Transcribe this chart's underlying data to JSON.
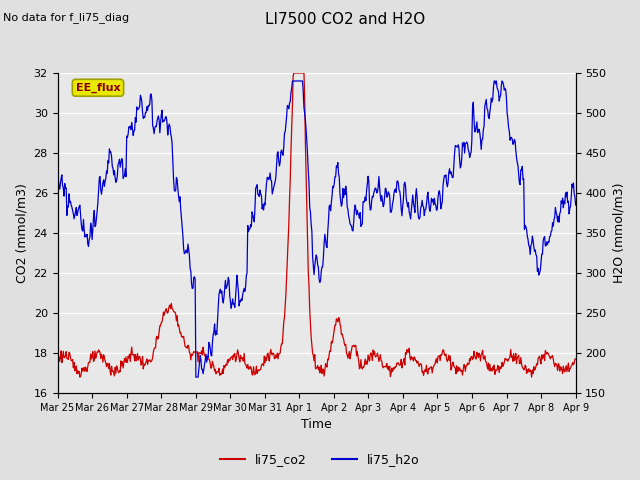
{
  "title": "LI7500 CO2 and H2O",
  "top_left_text": "No data for f_li75_diag",
  "annotation_box": "EE_flux",
  "xlabel": "Time",
  "ylabel_left": "CO2 (mmol/m3)",
  "ylabel_right": "H2O (mmol/m3)",
  "ylim_left": [
    16,
    32
  ],
  "ylim_right": [
    150,
    550
  ],
  "yticks_left": [
    16,
    18,
    20,
    22,
    24,
    26,
    28,
    30,
    32
  ],
  "yticks_right": [
    150,
    200,
    250,
    300,
    350,
    400,
    450,
    500,
    550
  ],
  "xtick_labels": [
    "Mar 25",
    "Mar 26",
    "Mar 27",
    "Mar 28",
    "Mar 29",
    "Mar 30",
    "Mar 31",
    "Apr 1",
    "Apr 2",
    "Apr 3",
    "Apr 4",
    "Apr 5",
    "Apr 6",
    "Apr 7",
    "Apr 8",
    "Apr 9"
  ],
  "co2_color": "#cc0000",
  "h2o_color": "#0000cc",
  "background_color": "#e0e0e0",
  "plot_bg_color": "#e8e8e8",
  "grid_color": "#ffffff",
  "annotation_bg": "#e8e800",
  "annotation_border": "#a0a000",
  "annotation_text_color": "#8B0000"
}
